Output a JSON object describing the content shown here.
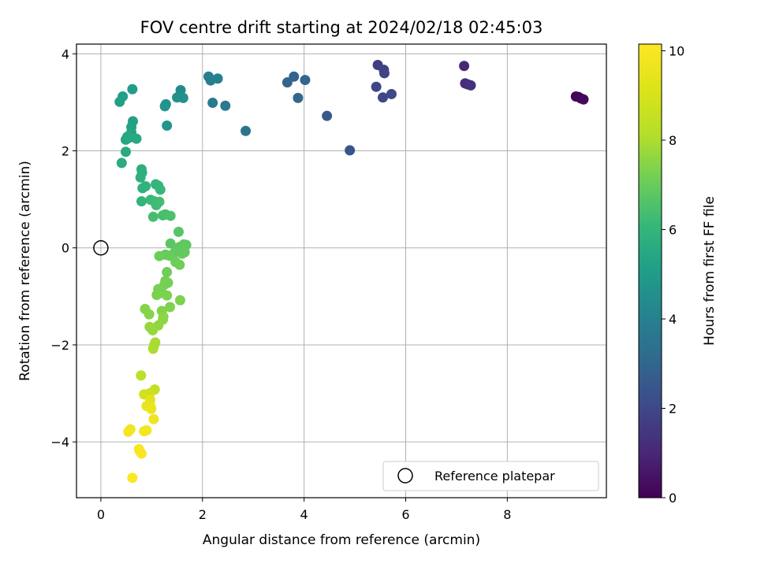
{
  "chart_data": {
    "type": "scatter",
    "title": "FOV centre drift starting at 2024/02/18 02:45:03",
    "xlabel": "Angular distance from reference (arcmin)",
    "ylabel": "Rotation from reference (arcmin)",
    "xlim": [
      -0.48,
      9.95
    ],
    "ylim": [
      -5.15,
      4.2
    ],
    "xticks": [
      0,
      2,
      4,
      6,
      8
    ],
    "yticks": [
      -4,
      -2,
      0,
      2,
      4
    ],
    "xtick_labels": [
      "0",
      "2",
      "4",
      "6",
      "8"
    ],
    "ytick_labels": [
      "−4",
      "−2",
      "0",
      "2",
      "4"
    ],
    "grid": true,
    "colorbar": {
      "label": "Hours from first FF file",
      "colormap": "viridis",
      "range": [
        0,
        10.15
      ],
      "ticks": [
        0,
        2,
        4,
        6,
        8,
        10
      ],
      "tick_labels": [
        "0",
        "2",
        "4",
        "6",
        "8",
        "10"
      ]
    },
    "legend": {
      "position": "lower right",
      "entries": [
        "Reference platepar"
      ]
    },
    "reference_point": {
      "x": 0,
      "y": 0
    },
    "points": [
      {
        "x": 9.35,
        "y": 3.12,
        "t": 0.05
      },
      {
        "x": 9.4,
        "y": 3.11,
        "t": 0.1
      },
      {
        "x": 9.45,
        "y": 3.08,
        "t": 0.15
      },
      {
        "x": 9.5,
        "y": 3.06,
        "t": 0.2
      },
      {
        "x": 7.15,
        "y": 3.75,
        "t": 1.0
      },
      {
        "x": 7.17,
        "y": 3.39,
        "t": 1.1
      },
      {
        "x": 7.22,
        "y": 3.37,
        "t": 1.2
      },
      {
        "x": 7.28,
        "y": 3.35,
        "t": 1.3
      },
      {
        "x": 5.45,
        "y": 3.77,
        "t": 1.7
      },
      {
        "x": 5.57,
        "y": 3.67,
        "t": 1.8
      },
      {
        "x": 5.58,
        "y": 3.6,
        "t": 1.85
      },
      {
        "x": 5.42,
        "y": 3.32,
        "t": 1.9
      },
      {
        "x": 5.55,
        "y": 3.1,
        "t": 1.95
      },
      {
        "x": 5.72,
        "y": 3.17,
        "t": 2.0
      },
      {
        "x": 4.9,
        "y": 2.01,
        "t": 2.4
      },
      {
        "x": 4.45,
        "y": 2.72,
        "t": 2.6
      },
      {
        "x": 3.8,
        "y": 3.53,
        "t": 2.8
      },
      {
        "x": 3.67,
        "y": 3.41,
        "t": 2.9
      },
      {
        "x": 4.02,
        "y": 3.46,
        "t": 2.95
      },
      {
        "x": 3.88,
        "y": 3.09,
        "t": 3.0
      },
      {
        "x": 2.85,
        "y": 2.41,
        "t": 3.5
      },
      {
        "x": 2.45,
        "y": 2.93,
        "t": 3.7
      },
      {
        "x": 2.2,
        "y": 2.99,
        "t": 3.8
      },
      {
        "x": 2.12,
        "y": 3.53,
        "t": 3.9
      },
      {
        "x": 2.16,
        "y": 3.45,
        "t": 3.95
      },
      {
        "x": 2.3,
        "y": 3.49,
        "t": 4.0
      },
      {
        "x": 1.57,
        "y": 3.25,
        "t": 4.4
      },
      {
        "x": 1.55,
        "y": 3.12,
        "t": 4.5
      },
      {
        "x": 1.62,
        "y": 3.09,
        "t": 4.55
      },
      {
        "x": 1.5,
        "y": 3.1,
        "t": 4.6
      },
      {
        "x": 1.26,
        "y": 2.92,
        "t": 4.7
      },
      {
        "x": 1.28,
        "y": 2.96,
        "t": 4.75
      },
      {
        "x": 1.3,
        "y": 2.52,
        "t": 4.8
      },
      {
        "x": 0.62,
        "y": 3.27,
        "t": 5.0
      },
      {
        "x": 0.43,
        "y": 3.12,
        "t": 5.1
      },
      {
        "x": 0.37,
        "y": 3.01,
        "t": 5.15
      },
      {
        "x": 0.63,
        "y": 2.61,
        "t": 5.2
      },
      {
        "x": 0.6,
        "y": 2.49,
        "t": 5.25
      },
      {
        "x": 0.6,
        "y": 2.38,
        "t": 5.3
      },
      {
        "x": 0.52,
        "y": 2.29,
        "t": 5.35
      },
      {
        "x": 0.49,
        "y": 2.23,
        "t": 5.4
      },
      {
        "x": 0.56,
        "y": 2.27,
        "t": 5.45
      },
      {
        "x": 0.7,
        "y": 2.25,
        "t": 5.5
      },
      {
        "x": 0.49,
        "y": 1.98,
        "t": 5.55
      },
      {
        "x": 0.41,
        "y": 1.75,
        "t": 5.6
      },
      {
        "x": 0.8,
        "y": 1.62,
        "t": 5.7
      },
      {
        "x": 0.81,
        "y": 1.55,
        "t": 5.75
      },
      {
        "x": 0.78,
        "y": 1.45,
        "t": 5.8
      },
      {
        "x": 0.82,
        "y": 1.23,
        "t": 5.85
      },
      {
        "x": 0.88,
        "y": 1.27,
        "t": 5.9
      },
      {
        "x": 0.8,
        "y": 0.96,
        "t": 5.95
      },
      {
        "x": 1.08,
        "y": 1.31,
        "t": 6.0
      },
      {
        "x": 1.13,
        "y": 1.28,
        "t": 6.05
      },
      {
        "x": 1.17,
        "y": 1.2,
        "t": 6.1
      },
      {
        "x": 0.98,
        "y": 0.99,
        "t": 6.15
      },
      {
        "x": 1.05,
        "y": 0.96,
        "t": 6.2
      },
      {
        "x": 1.09,
        "y": 0.88,
        "t": 6.25
      },
      {
        "x": 1.15,
        "y": 0.95,
        "t": 6.3
      },
      {
        "x": 1.03,
        "y": 0.64,
        "t": 6.35
      },
      {
        "x": 1.22,
        "y": 0.67,
        "t": 6.4
      },
      {
        "x": 1.27,
        "y": 0.69,
        "t": 6.45
      },
      {
        "x": 1.37,
        "y": 0.66,
        "t": 6.5
      },
      {
        "x": 1.53,
        "y": 0.33,
        "t": 6.7
      },
      {
        "x": 1.37,
        "y": 0.09,
        "t": 6.75
      },
      {
        "x": 1.63,
        "y": 0.07,
        "t": 6.8
      },
      {
        "x": 1.68,
        "y": 0.06,
        "t": 6.82
      },
      {
        "x": 1.55,
        "y": 0.02,
        "t": 6.85
      },
      {
        "x": 1.5,
        "y": -0.05,
        "t": 6.88
      },
      {
        "x": 1.45,
        "y": -0.1,
        "t": 6.9
      },
      {
        "x": 1.65,
        "y": -0.09,
        "t": 6.92
      },
      {
        "x": 1.6,
        "y": -0.12,
        "t": 6.95
      },
      {
        "x": 1.27,
        "y": -0.14,
        "t": 6.97
      },
      {
        "x": 1.35,
        "y": -0.16,
        "t": 7.0
      },
      {
        "x": 1.15,
        "y": -0.17,
        "t": 7.05
      },
      {
        "x": 1.47,
        "y": -0.29,
        "t": 7.08
      },
      {
        "x": 1.55,
        "y": -0.35,
        "t": 7.1
      },
      {
        "x": 1.3,
        "y": -0.5,
        "t": 7.12
      },
      {
        "x": 1.27,
        "y": -0.68,
        "t": 7.15
      },
      {
        "x": 1.32,
        "y": -0.72,
        "t": 7.18
      },
      {
        "x": 1.25,
        "y": -0.76,
        "t": 7.2
      },
      {
        "x": 1.13,
        "y": -0.85,
        "t": 7.22
      },
      {
        "x": 1.2,
        "y": -0.93,
        "t": 7.25
      },
      {
        "x": 1.1,
        "y": -0.97,
        "t": 7.28
      },
      {
        "x": 1.3,
        "y": -0.98,
        "t": 7.3
      },
      {
        "x": 1.56,
        "y": -1.08,
        "t": 7.32
      },
      {
        "x": 1.36,
        "y": -1.22,
        "t": 7.35
      },
      {
        "x": 1.2,
        "y": -1.3,
        "t": 7.38
      },
      {
        "x": 0.87,
        "y": -1.26,
        "t": 7.4
      },
      {
        "x": 0.95,
        "y": -1.37,
        "t": 7.45
      },
      {
        "x": 1.23,
        "y": -1.42,
        "t": 7.5
      },
      {
        "x": 1.22,
        "y": -1.48,
        "t": 7.55
      },
      {
        "x": 1.13,
        "y": -1.6,
        "t": 7.6
      },
      {
        "x": 0.96,
        "y": -1.63,
        "t": 7.65
      },
      {
        "x": 1.02,
        "y": -1.7,
        "t": 7.7
      },
      {
        "x": 1.07,
        "y": -1.95,
        "t": 7.9
      },
      {
        "x": 1.05,
        "y": -2.0,
        "t": 7.95
      },
      {
        "x": 1.03,
        "y": -2.08,
        "t": 8.0
      },
      {
        "x": 0.79,
        "y": -2.63,
        "t": 8.3
      },
      {
        "x": 1.06,
        "y": -2.92,
        "t": 8.5
      },
      {
        "x": 0.96,
        "y": -3.0,
        "t": 8.7
      },
      {
        "x": 0.85,
        "y": -3.02,
        "t": 8.8
      },
      {
        "x": 0.97,
        "y": -3.13,
        "t": 9.3
      },
      {
        "x": 0.96,
        "y": -3.2,
        "t": 9.4
      },
      {
        "x": 0.9,
        "y": -3.26,
        "t": 9.5
      },
      {
        "x": 0.98,
        "y": -3.28,
        "t": 9.55
      },
      {
        "x": 0.99,
        "y": -3.32,
        "t": 9.6
      },
      {
        "x": 1.04,
        "y": -3.53,
        "t": 9.7
      },
      {
        "x": 0.58,
        "y": -3.74,
        "t": 9.75
      },
      {
        "x": 0.54,
        "y": -3.79,
        "t": 9.8
      },
      {
        "x": 0.85,
        "y": -3.78,
        "t": 9.82
      },
      {
        "x": 0.9,
        "y": -3.76,
        "t": 9.85
      },
      {
        "x": 0.75,
        "y": -4.15,
        "t": 9.9
      },
      {
        "x": 0.77,
        "y": -4.2,
        "t": 9.95
      },
      {
        "x": 0.8,
        "y": -4.24,
        "t": 10.0
      },
      {
        "x": 0.62,
        "y": -4.74,
        "t": 10.1
      }
    ]
  }
}
